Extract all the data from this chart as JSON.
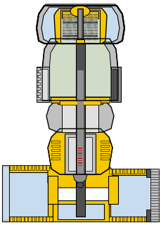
{
  "bg_color": "#ffffff",
  "yellow": "#F5C800",
  "light_blue": "#C8DCF0",
  "light_blue2": "#B8CCE0",
  "light_green": "#D0DCC8",
  "gray_dark": "#505050",
  "gray_mid": "#909090",
  "gray_light": "#C0C0C0",
  "gray_vlight": "#E0E0E0",
  "black": "#000000",
  "white": "#FFFFFF",
  "red": "#CC2020"
}
